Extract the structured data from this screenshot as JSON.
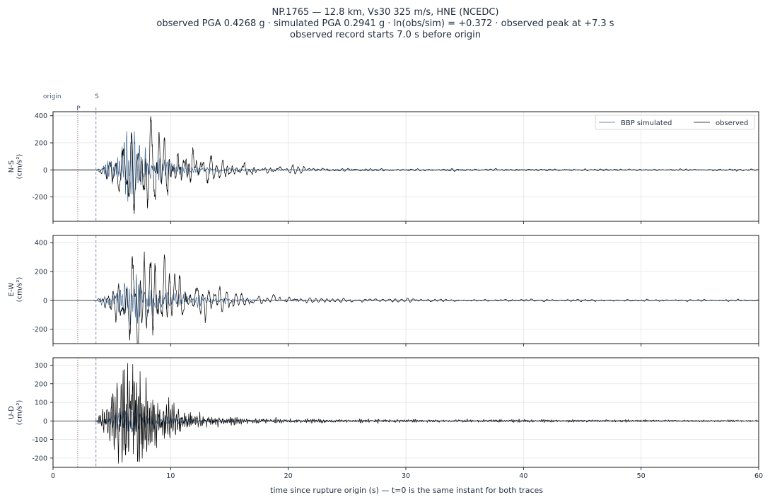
{
  "title_lines": [
    "NP.1765  —  12.8 km, Vs30 325 m/s, HNE (NCEDC)",
    "observed PGA 0.4268 g   ·   simulated PGA 0.2941 g   ·   ln(obs/sim) = +0.372   ·   observed peak at +7.3 s",
    "observed record starts 7.0 s before origin"
  ],
  "markers": {
    "origin_label": "origin",
    "p_label": "P",
    "s_label": "S",
    "p_time": 2.1,
    "s_time": 3.65
  },
  "x_axis": {
    "label": "time since rupture origin (s)   —   t=0 is the same instant for both traces",
    "range": [
      0,
      60
    ],
    "ticks": [
      0,
      10,
      20,
      30,
      40,
      50,
      60
    ]
  },
  "legend": {
    "items": [
      "BBP simulated",
      "observed"
    ],
    "placement": "upper-right of first panel"
  },
  "colors": {
    "simulated": "#3d6591",
    "observed": "#000000",
    "p_marker": "#8a6a80",
    "s_marker": "#7f8fb5",
    "grid": "#e3e3e3"
  },
  "chart_data": {
    "type": "line",
    "xlim": [
      0,
      60
    ],
    "panels": [
      {
        "name": "N-S",
        "ylabel": "N-S\n(cm/s²)",
        "ylim": [
          -380,
          430
        ],
        "yticks": [
          -200,
          0,
          200,
          400
        ],
        "series": [
          {
            "name": "BBP simulated",
            "start": 3.3,
            "end": 60,
            "rise": 0.25,
            "peak_t": 6.3,
            "peak": 285,
            "decay": 3.2,
            "period": 0.22,
            "seed": 11,
            "jag": 0.6
          },
          {
            "name": "observed",
            "start": 3.5,
            "end": 60,
            "rise": 0.35,
            "peak_t": 7.3,
            "peak": 395,
            "decay": 4.5,
            "period": 0.45,
            "seed": 23,
            "jag": 0.35
          }
        ]
      },
      {
        "name": "E-W",
        "ylabel": "E-W\n(cm/s²)",
        "ylim": [
          -300,
          450
        ],
        "yticks": [
          -200,
          0,
          200,
          400
        ],
        "series": [
          {
            "name": "BBP simulated",
            "start": 3.3,
            "end": 60,
            "rise": 0.25,
            "peak_t": 6.5,
            "peak": 180,
            "decay": 3.5,
            "period": 0.22,
            "seed": 37,
            "jag": 0.6
          },
          {
            "name": "observed",
            "start": 3.5,
            "end": 60,
            "rise": 0.35,
            "peak_t": 7.3,
            "peak": 420,
            "decay": 4.5,
            "period": 0.5,
            "seed": 41,
            "jag": 0.35
          }
        ]
      },
      {
        "name": "U-D",
        "ylabel": "U-D\n(cm/s²)",
        "ylim": [
          -250,
          340
        ],
        "yticks": [
          -200,
          -100,
          0,
          100,
          200,
          300
        ],
        "series": [
          {
            "name": "BBP simulated",
            "start": 3.3,
            "end": 56,
            "rise": 0.25,
            "peak_t": 6.0,
            "peak": 90,
            "decay": 3.5,
            "period": 0.2,
            "seed": 53,
            "jag": 0.6
          },
          {
            "name": "observed",
            "start": 3.5,
            "end": 60,
            "rise": 0.35,
            "peak_t": 6.0,
            "peak": 310,
            "decay": 3.0,
            "period": 0.16,
            "seed": 61,
            "jag": 0.6
          }
        ]
      }
    ]
  }
}
